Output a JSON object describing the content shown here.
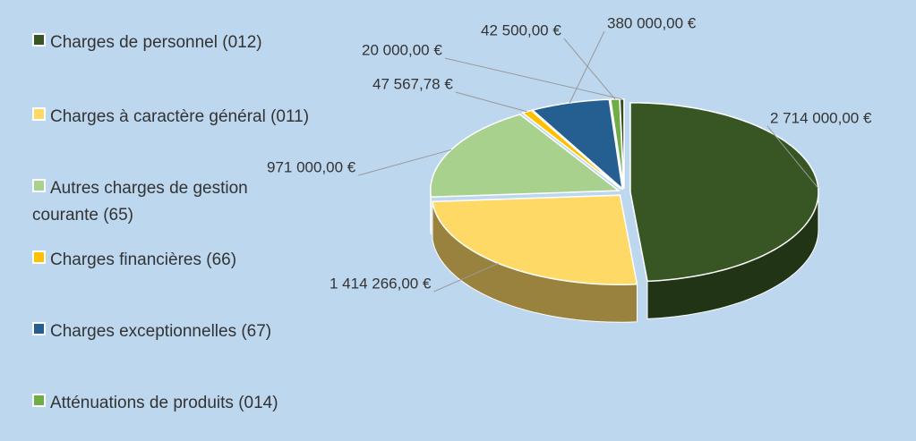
{
  "chart_data": {
    "type": "pie3d",
    "categories": [
      "Charges de personnel (012)",
      "Charges à caractère général (011)",
      "Autres charges de gestion courante (65)",
      "Charges financières (66)",
      "Charges exceptionnelles (67)",
      "Atténuations de produits (014)",
      null
    ],
    "values": [
      2714000,
      1414266,
      971000,
      47567.78,
      380000,
      42500,
      20000
    ],
    "value_labels": [
      "2 714 000,00 €",
      "1 414 266,00 €",
      "971 000,00 €",
      "47 567,78 €",
      "380 000,00 €",
      "42 500,00 €",
      "20 000,00 €"
    ],
    "colors": [
      "#375623",
      "#ffd966",
      "#a9d18e",
      "#ffc000",
      "#255e91",
      "#70ad47",
      "#3b4a1e"
    ],
    "legend": "left"
  }
}
